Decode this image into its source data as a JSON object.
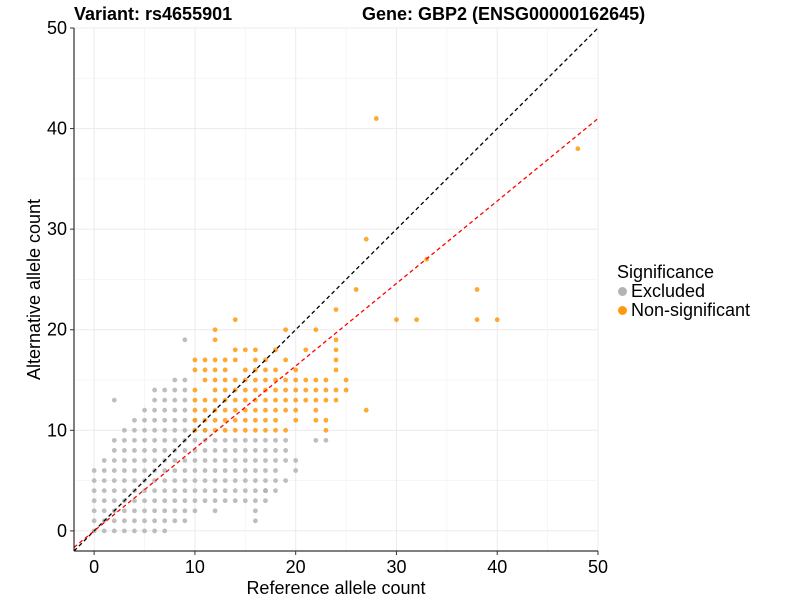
{
  "header": {
    "variant": "Variant: rs4655901",
    "gene": "Gene: GBP2 (ENSG00000162645)"
  },
  "chart_data": {
    "type": "scatter",
    "xlabel": "Reference allele count",
    "ylabel": "Alternative allele count",
    "xlim": [
      -2,
      50
    ],
    "ylim": [
      -2,
      50
    ],
    "x_ticks": [
      0,
      10,
      20,
      30,
      40,
      50
    ],
    "y_ticks": [
      0,
      10,
      20,
      30,
      40,
      50
    ],
    "grid": true,
    "legend": {
      "title": "Significance",
      "placement": "right",
      "entries": [
        {
          "label": "Excluded",
          "color": "#B3B3B3"
        },
        {
          "label": "Non-significant",
          "color": "#FF9A0F"
        }
      ]
    },
    "reference_lines": [
      {
        "kind": "identity",
        "slope": 1,
        "intercept": 0,
        "color": "#000000",
        "style": "dashed"
      },
      {
        "kind": "fit",
        "slope": 0.82,
        "intercept": 0,
        "color": "#FF0000",
        "style": "dashed"
      }
    ],
    "series": [
      {
        "name": "Excluded",
        "color": "#B3B3B3",
        "points": [
          [
            0,
            0
          ],
          [
            0,
            1
          ],
          [
            0,
            2
          ],
          [
            0,
            3
          ],
          [
            0,
            4
          ],
          [
            0,
            5
          ],
          [
            0,
            6
          ],
          [
            1,
            0
          ],
          [
            1,
            1
          ],
          [
            1,
            2
          ],
          [
            1,
            3
          ],
          [
            1,
            4
          ],
          [
            1,
            5
          ],
          [
            1,
            6
          ],
          [
            1,
            7
          ],
          [
            2,
            0
          ],
          [
            2,
            1
          ],
          [
            2,
            2
          ],
          [
            2,
            3
          ],
          [
            2,
            4
          ],
          [
            2,
            5
          ],
          [
            2,
            6
          ],
          [
            2,
            7
          ],
          [
            2,
            8
          ],
          [
            2,
            9
          ],
          [
            2,
            13
          ],
          [
            3,
            0
          ],
          [
            3,
            1
          ],
          [
            3,
            2
          ],
          [
            3,
            3
          ],
          [
            3,
            4
          ],
          [
            3,
            5
          ],
          [
            3,
            6
          ],
          [
            3,
            7
          ],
          [
            3,
            8
          ],
          [
            3,
            9
          ],
          [
            3,
            10
          ],
          [
            4,
            0
          ],
          [
            4,
            1
          ],
          [
            4,
            2
          ],
          [
            4,
            3
          ],
          [
            4,
            4
          ],
          [
            4,
            5
          ],
          [
            4,
            6
          ],
          [
            4,
            7
          ],
          [
            4,
            8
          ],
          [
            4,
            9
          ],
          [
            4,
            10
          ],
          [
            4,
            11
          ],
          [
            5,
            0
          ],
          [
            5,
            1
          ],
          [
            5,
            2
          ],
          [
            5,
            3
          ],
          [
            5,
            4
          ],
          [
            5,
            5
          ],
          [
            5,
            6
          ],
          [
            5,
            7
          ],
          [
            5,
            8
          ],
          [
            5,
            9
          ],
          [
            5,
            10
          ],
          [
            5,
            11
          ],
          [
            5,
            12
          ],
          [
            6,
            0
          ],
          [
            6,
            1
          ],
          [
            6,
            2
          ],
          [
            6,
            3
          ],
          [
            6,
            4
          ],
          [
            6,
            5
          ],
          [
            6,
            6
          ],
          [
            6,
            7
          ],
          [
            6,
            8
          ],
          [
            6,
            9
          ],
          [
            6,
            10
          ],
          [
            6,
            11
          ],
          [
            6,
            12
          ],
          [
            6,
            13
          ],
          [
            6,
            14
          ],
          [
            7,
            0
          ],
          [
            7,
            1
          ],
          [
            7,
            2
          ],
          [
            7,
            3
          ],
          [
            7,
            4
          ],
          [
            7,
            5
          ],
          [
            7,
            6
          ],
          [
            7,
            7
          ],
          [
            7,
            8
          ],
          [
            7,
            9
          ],
          [
            7,
            10
          ],
          [
            7,
            11
          ],
          [
            7,
            12
          ],
          [
            7,
            13
          ],
          [
            7,
            14
          ],
          [
            8,
            1
          ],
          [
            8,
            2
          ],
          [
            8,
            3
          ],
          [
            8,
            4
          ],
          [
            8,
            5
          ],
          [
            8,
            6
          ],
          [
            8,
            7
          ],
          [
            8,
            8
          ],
          [
            8,
            9
          ],
          [
            8,
            10
          ],
          [
            8,
            11
          ],
          [
            8,
            12
          ],
          [
            8,
            13
          ],
          [
            8,
            14
          ],
          [
            8,
            15
          ],
          [
            9,
            1
          ],
          [
            9,
            2
          ],
          [
            9,
            3
          ],
          [
            9,
            4
          ],
          [
            9,
            5
          ],
          [
            9,
            6
          ],
          [
            9,
            7
          ],
          [
            9,
            8
          ],
          [
            9,
            9
          ],
          [
            9,
            10
          ],
          [
            9,
            11
          ],
          [
            9,
            12
          ],
          [
            9,
            13
          ],
          [
            9,
            14
          ],
          [
            9,
            15
          ],
          [
            9,
            19
          ],
          [
            10,
            2
          ],
          [
            10,
            3
          ],
          [
            10,
            4
          ],
          [
            10,
            5
          ],
          [
            10,
            6
          ],
          [
            10,
            7
          ],
          [
            10,
            8
          ],
          [
            10,
            9
          ],
          [
            10,
            10
          ],
          [
            10,
            11
          ],
          [
            11,
            3
          ],
          [
            11,
            4
          ],
          [
            11,
            5
          ],
          [
            11,
            6
          ],
          [
            11,
            7
          ],
          [
            11,
            8
          ],
          [
            11,
            9
          ],
          [
            11,
            10
          ],
          [
            12,
            2
          ],
          [
            12,
            3
          ],
          [
            12,
            4
          ],
          [
            12,
            5
          ],
          [
            12,
            6
          ],
          [
            12,
            7
          ],
          [
            12,
            8
          ],
          [
            12,
            9
          ],
          [
            13,
            3
          ],
          [
            13,
            4
          ],
          [
            13,
            5
          ],
          [
            13,
            6
          ],
          [
            13,
            7
          ],
          [
            13,
            8
          ],
          [
            13,
            9
          ],
          [
            14,
            3
          ],
          [
            14,
            4
          ],
          [
            14,
            5
          ],
          [
            14,
            6
          ],
          [
            14,
            7
          ],
          [
            14,
            8
          ],
          [
            14,
            9
          ],
          [
            15,
            3
          ],
          [
            15,
            4
          ],
          [
            15,
            5
          ],
          [
            15,
            6
          ],
          [
            15,
            7
          ],
          [
            15,
            8
          ],
          [
            15,
            9
          ],
          [
            16,
            2
          ],
          [
            16,
            3
          ],
          [
            16,
            4
          ],
          [
            16,
            5
          ],
          [
            16,
            6
          ],
          [
            16,
            7
          ],
          [
            16,
            8
          ],
          [
            16,
            9
          ],
          [
            17,
            3
          ],
          [
            17,
            4
          ],
          [
            17,
            5
          ],
          [
            17,
            6
          ],
          [
            17,
            7
          ],
          [
            17,
            8
          ],
          [
            17,
            9
          ],
          [
            18,
            4
          ],
          [
            18,
            5
          ],
          [
            18,
            6
          ],
          [
            18,
            7
          ],
          [
            18,
            8
          ],
          [
            18,
            9
          ],
          [
            19,
            5
          ],
          [
            19,
            7
          ],
          [
            19,
            8
          ],
          [
            19,
            9
          ],
          [
            20,
            6
          ],
          [
            20,
            7
          ],
          [
            22,
            9
          ],
          [
            23,
            9
          ],
          [
            16,
            1
          ],
          [
            17,
            4
          ],
          [
            17,
            4
          ]
        ]
      },
      {
        "name": "Non-significant",
        "color": "#FF9A0F",
        "points": [
          [
            10,
            10
          ],
          [
            10,
            11
          ],
          [
            10,
            12
          ],
          [
            10,
            13
          ],
          [
            10,
            14
          ],
          [
            10,
            16
          ],
          [
            10,
            17
          ],
          [
            11,
            10
          ],
          [
            11,
            11
          ],
          [
            11,
            12
          ],
          [
            11,
            13
          ],
          [
            11,
            15
          ],
          [
            11,
            16
          ],
          [
            11,
            17
          ],
          [
            12,
            10
          ],
          [
            12,
            11
          ],
          [
            12,
            12
          ],
          [
            12,
            13
          ],
          [
            12,
            14
          ],
          [
            12,
            15
          ],
          [
            12,
            16
          ],
          [
            12,
            17
          ],
          [
            12,
            19
          ],
          [
            12,
            20
          ],
          [
            13,
            10
          ],
          [
            13,
            11
          ],
          [
            13,
            12
          ],
          [
            13,
            13
          ],
          [
            13,
            14
          ],
          [
            13,
            15
          ],
          [
            13,
            16
          ],
          [
            13,
            17
          ],
          [
            14,
            10
          ],
          [
            14,
            11
          ],
          [
            14,
            12
          ],
          [
            14,
            13
          ],
          [
            14,
            14
          ],
          [
            14,
            15
          ],
          [
            14,
            17
          ],
          [
            14,
            18
          ],
          [
            14,
            21
          ],
          [
            15,
            10
          ],
          [
            15,
            11
          ],
          [
            15,
            12
          ],
          [
            15,
            13
          ],
          [
            15,
            14
          ],
          [
            15,
            15
          ],
          [
            15,
            16
          ],
          [
            15,
            18
          ],
          [
            16,
            10
          ],
          [
            16,
            11
          ],
          [
            16,
            12
          ],
          [
            16,
            13
          ],
          [
            16,
            14
          ],
          [
            16,
            15
          ],
          [
            16,
            16
          ],
          [
            16,
            17
          ],
          [
            16,
            18
          ],
          [
            17,
            10
          ],
          [
            17,
            11
          ],
          [
            17,
            12
          ],
          [
            17,
            13
          ],
          [
            17,
            14
          ],
          [
            17,
            15
          ],
          [
            17,
            16
          ],
          [
            17,
            17
          ],
          [
            18,
            10
          ],
          [
            18,
            11
          ],
          [
            18,
            12
          ],
          [
            18,
            13
          ],
          [
            18,
            14
          ],
          [
            18,
            15
          ],
          [
            18,
            16
          ],
          [
            18,
            18
          ],
          [
            19,
            10
          ],
          [
            19,
            12
          ],
          [
            19,
            13
          ],
          [
            19,
            14
          ],
          [
            19,
            15
          ],
          [
            19,
            17
          ],
          [
            19,
            20
          ],
          [
            20,
            11
          ],
          [
            20,
            12
          ],
          [
            20,
            13
          ],
          [
            20,
            14
          ],
          [
            20,
            15
          ],
          [
            20,
            16
          ],
          [
            21,
            13
          ],
          [
            21,
            14
          ],
          [
            21,
            15
          ],
          [
            21,
            18
          ],
          [
            22,
            11
          ],
          [
            22,
            12
          ],
          [
            22,
            13
          ],
          [
            22,
            14
          ],
          [
            22,
            15
          ],
          [
            22,
            20
          ],
          [
            23,
            10
          ],
          [
            23,
            11
          ],
          [
            23,
            13
          ],
          [
            23,
            14
          ],
          [
            23,
            15
          ],
          [
            24,
            13
          ],
          [
            24,
            14
          ],
          [
            24,
            16
          ],
          [
            24,
            17
          ],
          [
            24,
            18
          ],
          [
            24,
            19
          ],
          [
            24,
            22
          ],
          [
            25,
            14
          ],
          [
            25,
            15
          ],
          [
            26,
            24
          ],
          [
            27,
            12
          ],
          [
            27,
            29
          ],
          [
            28,
            41
          ],
          [
            30,
            21
          ],
          [
            32,
            21
          ],
          [
            33,
            27
          ],
          [
            38,
            21
          ],
          [
            38,
            24
          ],
          [
            40,
            21
          ],
          [
            48,
            38
          ]
        ]
      }
    ]
  }
}
